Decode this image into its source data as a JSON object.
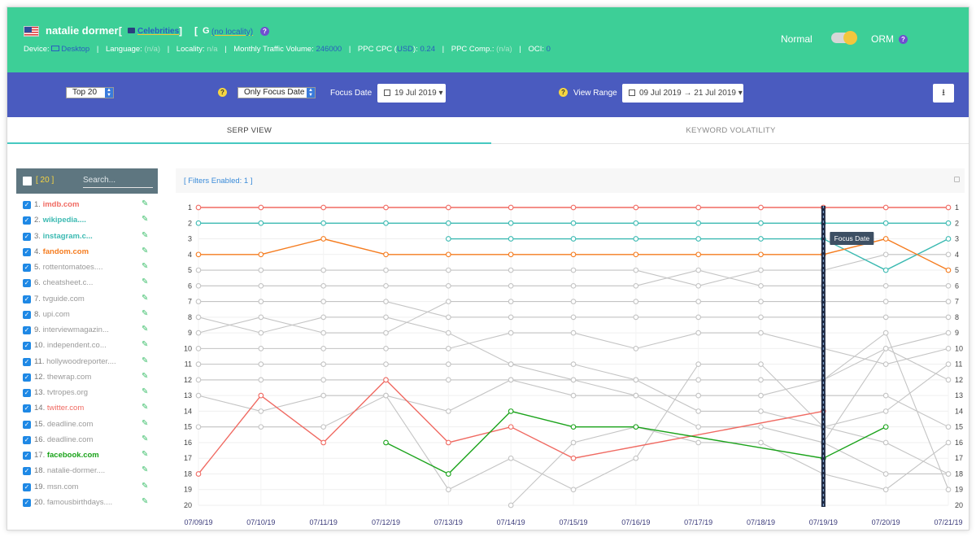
{
  "header": {
    "keyword": "natalie dormer",
    "open_bracket": "[",
    "close_bracket": "]",
    "category": "Celebrities",
    "locality": "(no locality)",
    "meta": {
      "device_label": "Device:",
      "device": "Desktop",
      "language_label": "Language:",
      "language": "(n/a)",
      "locality_label": "Locality:",
      "locality": "n/a",
      "mtv_label": "Monthly Traffic Volume:",
      "mtv": "246000",
      "ppc_label": "PPC CPC (",
      "ppc_currency": "USD",
      "ppc_sep": "):",
      "ppc": "0.24",
      "comp_label": "PPC Comp.:",
      "comp": "(n/a)",
      "oci_label": "OCI:",
      "oci": "0",
      "separator": "|"
    },
    "mode_left": "Normal",
    "mode_right": "ORM"
  },
  "toolbar": {
    "top_select": "Top 20",
    "focus_select": "Only Focus Date",
    "focus_date_label": "Focus Date",
    "focus_date": "19 Jul 2019",
    "view_range_label": "View Range",
    "view_range": "09 Jul 2019 → 21 Jul 2019"
  },
  "tabs": [
    "SERP VIEW",
    "KEYWORD VOLATILITY"
  ],
  "sidebar": {
    "count": "[ 20 ]",
    "search_placeholder": "Search...",
    "items": [
      {
        "num": "1.",
        "name": "imdb.com",
        "color": "#f06a62",
        "bold": true
      },
      {
        "num": "2.",
        "name": "wikipedia....",
        "color": "#3cbab2",
        "bold": true
      },
      {
        "num": "3.",
        "name": "instagram.c...",
        "color": "#3cbab2",
        "bold": true
      },
      {
        "num": "4.",
        "name": "fandom.com",
        "color": "#f57c1f",
        "bold": true
      },
      {
        "num": "5.",
        "name": "rottentomatoes....",
        "color": "#9a9a9a",
        "bold": false
      },
      {
        "num": "6.",
        "name": "cheatsheet.c...",
        "color": "#9a9a9a",
        "bold": false
      },
      {
        "num": "7.",
        "name": "tvguide.com",
        "color": "#9a9a9a",
        "bold": false
      },
      {
        "num": "8.",
        "name": "upi.com",
        "color": "#9a9a9a",
        "bold": false
      },
      {
        "num": "9.",
        "name": "interviewmagazin...",
        "color": "#9a9a9a",
        "bold": false
      },
      {
        "num": "10.",
        "name": "independent.co...",
        "color": "#9a9a9a",
        "bold": false
      },
      {
        "num": "11.",
        "name": "hollywoodreporter....",
        "color": "#9a9a9a",
        "bold": false
      },
      {
        "num": "12.",
        "name": "thewrap.com",
        "color": "#9a9a9a",
        "bold": false
      },
      {
        "num": "13.",
        "name": "tvtropes.org",
        "color": "#9a9a9a",
        "bold": false
      },
      {
        "num": "14.",
        "name": "twitter.com",
        "color": "#f06a62",
        "bold": false
      },
      {
        "num": "15.",
        "name": "deadline.com",
        "color": "#9a9a9a",
        "bold": false
      },
      {
        "num": "16.",
        "name": "deadline.com",
        "color": "#9a9a9a",
        "bold": false
      },
      {
        "num": "17.",
        "name": "facebook.com",
        "color": "#1aa31a",
        "bold": true
      },
      {
        "num": "18.",
        "name": "natalie-dormer....",
        "color": "#9a9a9a",
        "bold": false
      },
      {
        "num": "19.",
        "name": "msn.com",
        "color": "#9a9a9a",
        "bold": false
      },
      {
        "num": "20.",
        "name": "famousbirthdays....",
        "color": "#9a9a9a",
        "bold": false
      }
    ]
  },
  "filters": "[ Filters Enabled: 1 ]",
  "chart_data": {
    "type": "line",
    "x": [
      "07/09/19",
      "07/10/19",
      "07/11/19",
      "07/12/19",
      "07/13/19",
      "07/14/19",
      "07/15/19",
      "07/16/19",
      "07/17/19",
      "07/18/19",
      "07/19/19",
      "07/20/19",
      "07/21/19"
    ],
    "ylim": [
      1,
      20
    ],
    "y_reversed": true,
    "focus_date": "07/19/19",
    "focus_label": "Focus Date",
    "series": [
      {
        "color": "#f06a62",
        "values": [
          1,
          1,
          1,
          1,
          1,
          1,
          1,
          1,
          1,
          1,
          1,
          1,
          1
        ]
      },
      {
        "color": "#3cbab2",
        "values": [
          2,
          2,
          2,
          2,
          2,
          2,
          2,
          2,
          2,
          2,
          2,
          2,
          2
        ]
      },
      {
        "color": "#3cbab2",
        "values": [
          null,
          null,
          null,
          null,
          3,
          3,
          3,
          3,
          3,
          3,
          3,
          5,
          3
        ]
      },
      {
        "color": "#f57c1f",
        "values": [
          4,
          4,
          3,
          4,
          4,
          4,
          4,
          4,
          4,
          4,
          4,
          3,
          5
        ]
      },
      {
        "color": "#c4c4c4",
        "values": [
          5,
          5,
          5,
          5,
          5,
          5,
          5,
          5,
          6,
          5,
          5,
          4,
          4
        ]
      },
      {
        "color": "#c4c4c4",
        "values": [
          6,
          6,
          6,
          6,
          6,
          6,
          6,
          6,
          5,
          6,
          6,
          6,
          6
        ]
      },
      {
        "color": "#c4c4c4",
        "values": [
          7,
          7,
          7,
          7,
          8,
          8,
          8,
          8,
          8,
          8,
          8,
          8,
          8
        ]
      },
      {
        "color": "#c4c4c4",
        "values": [
          8,
          9,
          8,
          8,
          9,
          11,
          11,
          12,
          14,
          14,
          15,
          16,
          18
        ]
      },
      {
        "color": "#c4c4c4",
        "values": [
          9,
          8,
          9,
          9,
          7,
          7,
          7,
          7,
          7,
          7,
          7,
          7,
          7
        ]
      },
      {
        "color": "#c4c4c4",
        "values": [
          10,
          10,
          10,
          10,
          10,
          9,
          9,
          10,
          9,
          9,
          10,
          11,
          10
        ]
      },
      {
        "color": "#c4c4c4",
        "values": [
          11,
          11,
          11,
          11,
          11,
          11,
          12,
          12,
          12,
          12,
          12,
          10,
          9
        ]
      },
      {
        "color": "#c4c4c4",
        "values": [
          12,
          12,
          12,
          12,
          12,
          12,
          12,
          13,
          13,
          13,
          12,
          9,
          19
        ]
      },
      {
        "color": "#c4c4c4",
        "values": [
          13,
          14,
          13,
          13,
          14,
          12,
          13,
          13,
          15,
          15,
          16,
          10,
          12
        ]
      },
      {
        "color": "#c4c4c4",
        "values": [
          15,
          15,
          15,
          13,
          19,
          17,
          19,
          17,
          11,
          11,
          15,
          14,
          11
        ]
      },
      {
        "color": "#c4c4c4",
        "values": [
          null,
          null,
          null,
          null,
          null,
          20,
          16,
          15,
          16,
          16,
          18,
          19,
          16
        ]
      },
      {
        "color": "#c4c4c4",
        "values": [
          null,
          null,
          null,
          null,
          null,
          null,
          null,
          null,
          null,
          null,
          16,
          18,
          18
        ]
      },
      {
        "color": "#c4c4c4",
        "values": [
          null,
          null,
          null,
          null,
          null,
          null,
          null,
          null,
          null,
          null,
          13,
          13,
          15
        ]
      },
      {
        "color": "#f06a62",
        "values": [
          18,
          13,
          16,
          12,
          16,
          15,
          17,
          null,
          null,
          null,
          14,
          null,
          null
        ]
      },
      {
        "color": "#1aa31a",
        "values": [
          null,
          null,
          null,
          16,
          18,
          14,
          15,
          15,
          null,
          null,
          17,
          15,
          null
        ]
      }
    ]
  }
}
